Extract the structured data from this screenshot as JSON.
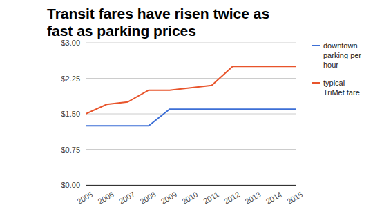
{
  "chart_data": {
    "type": "line",
    "title": "Transit fares have risen twice as fast as parking prices",
    "categories": [
      "2005",
      "2006",
      "2007",
      "2008",
      "2009",
      "2010",
      "2011",
      "2012",
      "2013",
      "2014",
      "2015"
    ],
    "series": [
      {
        "name": "downtown parking per hour",
        "color": "#3d6fd6",
        "values": [
          1.25,
          1.25,
          1.25,
          1.25,
          1.6,
          1.6,
          1.6,
          1.6,
          1.6,
          1.6,
          1.6
        ]
      },
      {
        "name": "typical TriMet fare",
        "color": "#e8542b",
        "values": [
          1.5,
          1.7,
          1.75,
          2.0,
          2.0,
          2.05,
          2.1,
          2.5,
          2.5,
          2.5,
          2.5
        ]
      }
    ],
    "ylim": [
      0,
      3
    ],
    "yticks": [
      {
        "value": 0,
        "label": "$0.00"
      },
      {
        "value": 0.75,
        "label": "$0.75"
      },
      {
        "value": 1.5,
        "label": "$1.50"
      },
      {
        "value": 2.25,
        "label": "$2.25"
      },
      {
        "value": 3,
        "label": "$3.00"
      }
    ],
    "grid": true,
    "legend": "right"
  }
}
